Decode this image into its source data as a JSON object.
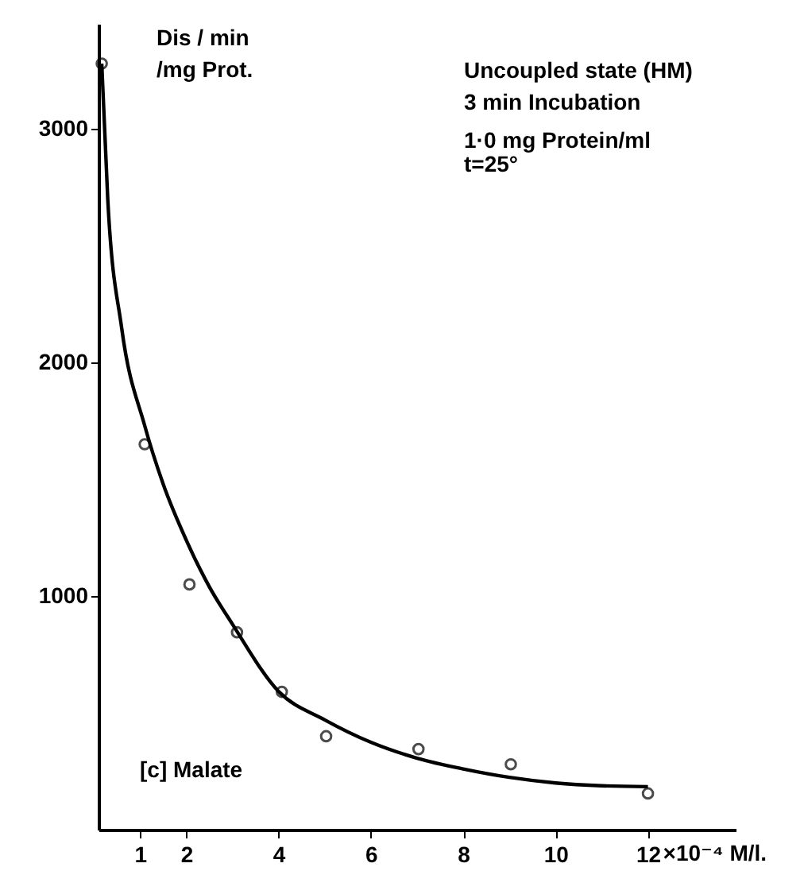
{
  "chart_data": {
    "type": "scatter",
    "xlabel": "×10⁻⁴ M/l.",
    "ylabel": [
      "Dis / min",
      "/mg Prot."
    ],
    "annotations": [
      "Uncoupled state (HM)",
      "3 min Incubation",
      "1·0 mg Protein/ml",
      "t=25°",
      "[c] Malate"
    ],
    "xlim": [
      0.1,
      13.9
    ],
    "ylim": [
      0,
      3450
    ],
    "xticks": [
      1,
      2,
      4,
      6,
      8,
      10,
      12
    ],
    "yticks": [
      1000,
      2000,
      3000
    ],
    "grid": false,
    "series": [
      {
        "color": "#000000",
        "marker": "circle",
        "x": [
          0.17,
          1.1,
          2.07,
          3.1,
          4.07,
          5.03,
          7.03,
          9.03,
          12.0
        ],
        "values": [
          3280,
          1650,
          1050,
          845,
          590,
          400,
          345,
          280,
          155
        ]
      },
      {
        "type": "line",
        "color": "#000000",
        "marker": "none",
        "x": [
          0.17,
          0.3,
          0.6,
          1.1,
          1.5,
          2,
          2.5,
          3,
          4,
          5,
          6,
          7,
          8,
          9,
          10,
          11,
          12
        ],
        "values": [
          3280,
          2700,
          2150,
          1730,
          1480,
          1240,
          1040,
          880,
          592,
          470,
          374,
          306,
          260,
          224,
          200,
          188,
          184
        ]
      }
    ]
  }
}
